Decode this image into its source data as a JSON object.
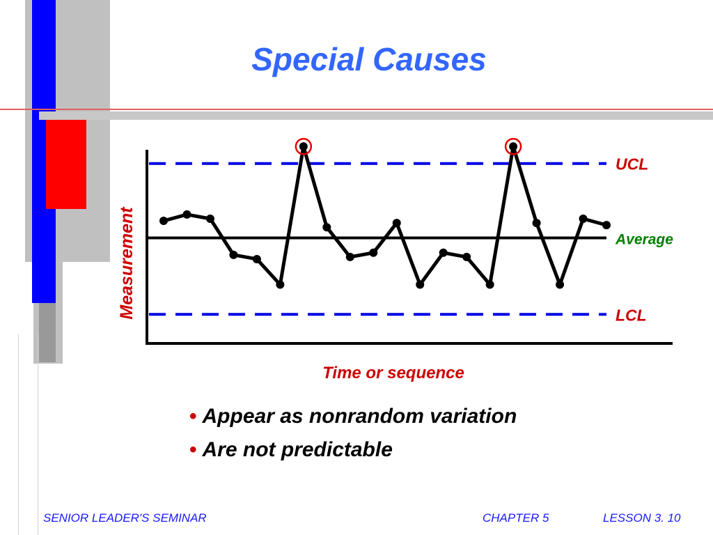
{
  "title": "Special Causes",
  "bullets": [
    "Appear as nonrandom variation",
    "Are not predictable"
  ],
  "footer": {
    "left": "SENIOR LEADER'S SEMINAR",
    "chapter": "CHAPTER  5",
    "lesson": "LESSON  3.  10"
  },
  "colors": {
    "title": "#3366ff",
    "control_limit": "#0000e6",
    "limit_label": "#cc0000",
    "average_label": "#008000",
    "highlight": "#e60000",
    "bar_blue": "#0000ff",
    "bar_red": "#ff0000",
    "bar_gray": "#c0c0c0"
  },
  "chart_data": {
    "type": "line",
    "xlabel": "Time or sequence",
    "ylabel": "Measurement",
    "ylim": [
      0,
      10
    ],
    "grid": false,
    "series": [
      {
        "x": [
          1,
          2,
          3,
          4,
          5,
          6,
          7,
          8,
          9,
          10,
          11,
          12,
          13,
          14,
          15,
          16,
          17,
          18,
          19,
          20
        ],
        "values": [
          5.9,
          6.2,
          6.0,
          4.3,
          4.1,
          2.9,
          9.4,
          5.6,
          4.2,
          4.4,
          5.8,
          2.9,
          4.4,
          4.2,
          2.9,
          9.4,
          5.8,
          2.9,
          6.0,
          5.7
        ]
      }
    ],
    "reference_lines": [
      {
        "label": "UCL",
        "value": 8.6
      },
      {
        "label": "Average",
        "value": 5.1
      },
      {
        "label": "LCL",
        "value": 1.5
      }
    ],
    "highlighted_points": [
      7,
      16
    ]
  }
}
